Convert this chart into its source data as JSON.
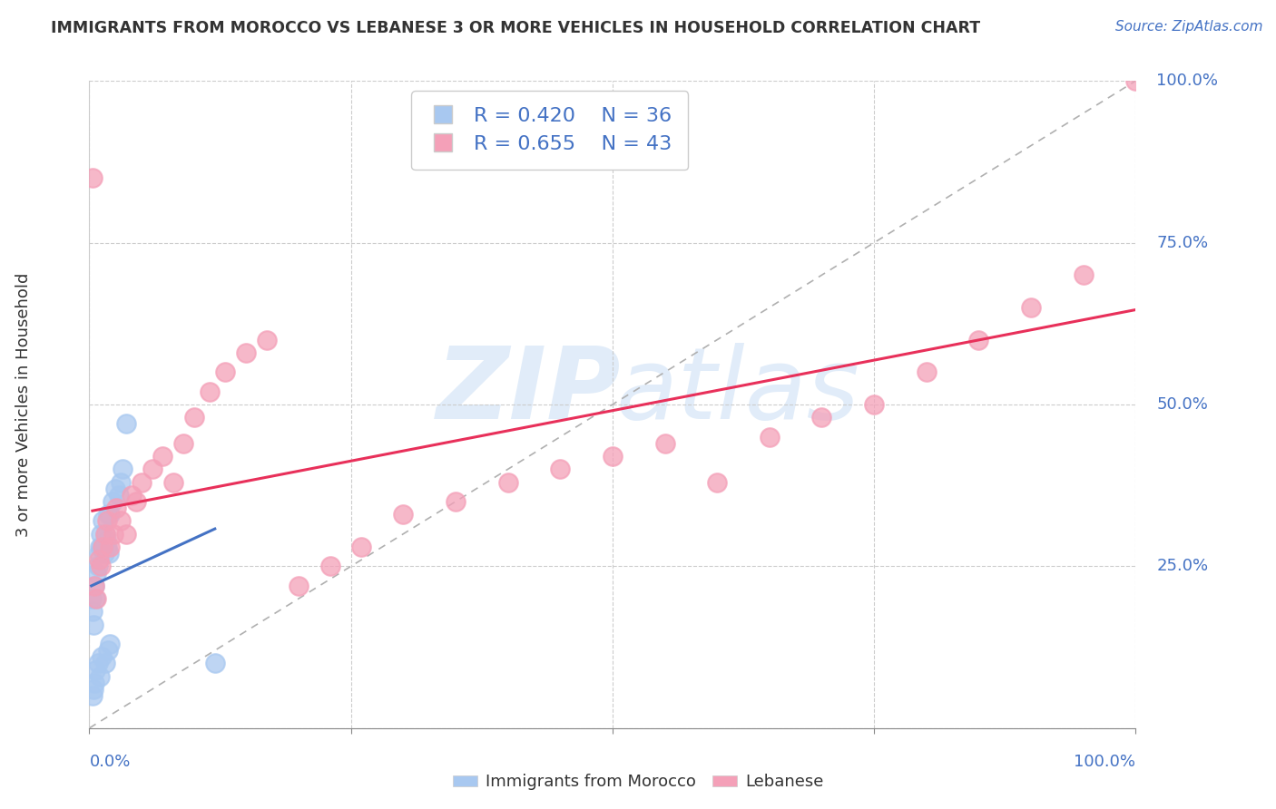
{
  "title": "IMMIGRANTS FROM MOROCCO VS LEBANESE 3 OR MORE VEHICLES IN HOUSEHOLD CORRELATION CHART",
  "source": "Source: ZipAtlas.com",
  "ylabel": "3 or more Vehicles in Household",
  "xlim": [
    0,
    1.0
  ],
  "ylim": [
    0,
    1.0
  ],
  "xticks": [
    0.0,
    0.25,
    0.5,
    0.75,
    1.0
  ],
  "xtick_labels": [
    "0.0%",
    "",
    "",
    "",
    "100.0%"
  ],
  "yticks": [
    0.0,
    0.25,
    0.5,
    0.75,
    1.0
  ],
  "ytick_labels_right": [
    "",
    "25.0%",
    "50.0%",
    "75.0%",
    "100.0%"
  ],
  "morocco_color": "#a8c8f0",
  "lebanese_color": "#f4a0b8",
  "morocco_R": 0.42,
  "morocco_N": 36,
  "lebanese_R": 0.655,
  "lebanese_N": 43,
  "morocco_line_color": "#4472c4",
  "lebanese_line_color": "#e8305a",
  "legend_R_color": "#4472c4",
  "watermark_zip": "ZIP",
  "watermark_atlas": "atlas",
  "morocco_x": [
    0.002,
    0.003,
    0.004,
    0.005,
    0.006,
    0.007,
    0.008,
    0.009,
    0.01,
    0.011,
    0.012,
    0.013,
    0.014,
    0.015,
    0.016,
    0.017,
    0.018,
    0.019,
    0.02,
    0.022,
    0.025,
    0.028,
    0.03,
    0.032,
    0.035,
    0.003,
    0.004,
    0.005,
    0.006,
    0.008,
    0.01,
    0.012,
    0.015,
    0.018,
    0.02,
    0.12
  ],
  "morocco_y": [
    0.2,
    0.18,
    0.16,
    0.22,
    0.2,
    0.24,
    0.25,
    0.27,
    0.28,
    0.3,
    0.28,
    0.32,
    0.27,
    0.3,
    0.29,
    0.28,
    0.33,
    0.27,
    0.33,
    0.35,
    0.37,
    0.36,
    0.38,
    0.4,
    0.47,
    0.05,
    0.06,
    0.07,
    0.09,
    0.1,
    0.08,
    0.11,
    0.1,
    0.12,
    0.13,
    0.1
  ],
  "lebanese_x": [
    0.005,
    0.007,
    0.009,
    0.011,
    0.013,
    0.015,
    0.017,
    0.02,
    0.023,
    0.026,
    0.03,
    0.035,
    0.04,
    0.045,
    0.05,
    0.06,
    0.07,
    0.08,
    0.09,
    0.1,
    0.115,
    0.13,
    0.15,
    0.17,
    0.2,
    0.23,
    0.26,
    0.3,
    0.35,
    0.4,
    0.45,
    0.5,
    0.55,
    0.6,
    0.65,
    0.7,
    0.75,
    0.8,
    0.85,
    0.9,
    0.95,
    1.0,
    0.003
  ],
  "lebanese_y": [
    0.22,
    0.2,
    0.26,
    0.25,
    0.28,
    0.3,
    0.32,
    0.28,
    0.3,
    0.34,
    0.32,
    0.3,
    0.36,
    0.35,
    0.38,
    0.4,
    0.42,
    0.38,
    0.44,
    0.48,
    0.52,
    0.55,
    0.58,
    0.6,
    0.22,
    0.25,
    0.28,
    0.33,
    0.35,
    0.38,
    0.4,
    0.42,
    0.44,
    0.38,
    0.45,
    0.48,
    0.5,
    0.55,
    0.6,
    0.65,
    0.7,
    1.0,
    0.85
  ],
  "grid_color": "#cccccc",
  "grid_linestyle": "--",
  "background_color": "#ffffff"
}
